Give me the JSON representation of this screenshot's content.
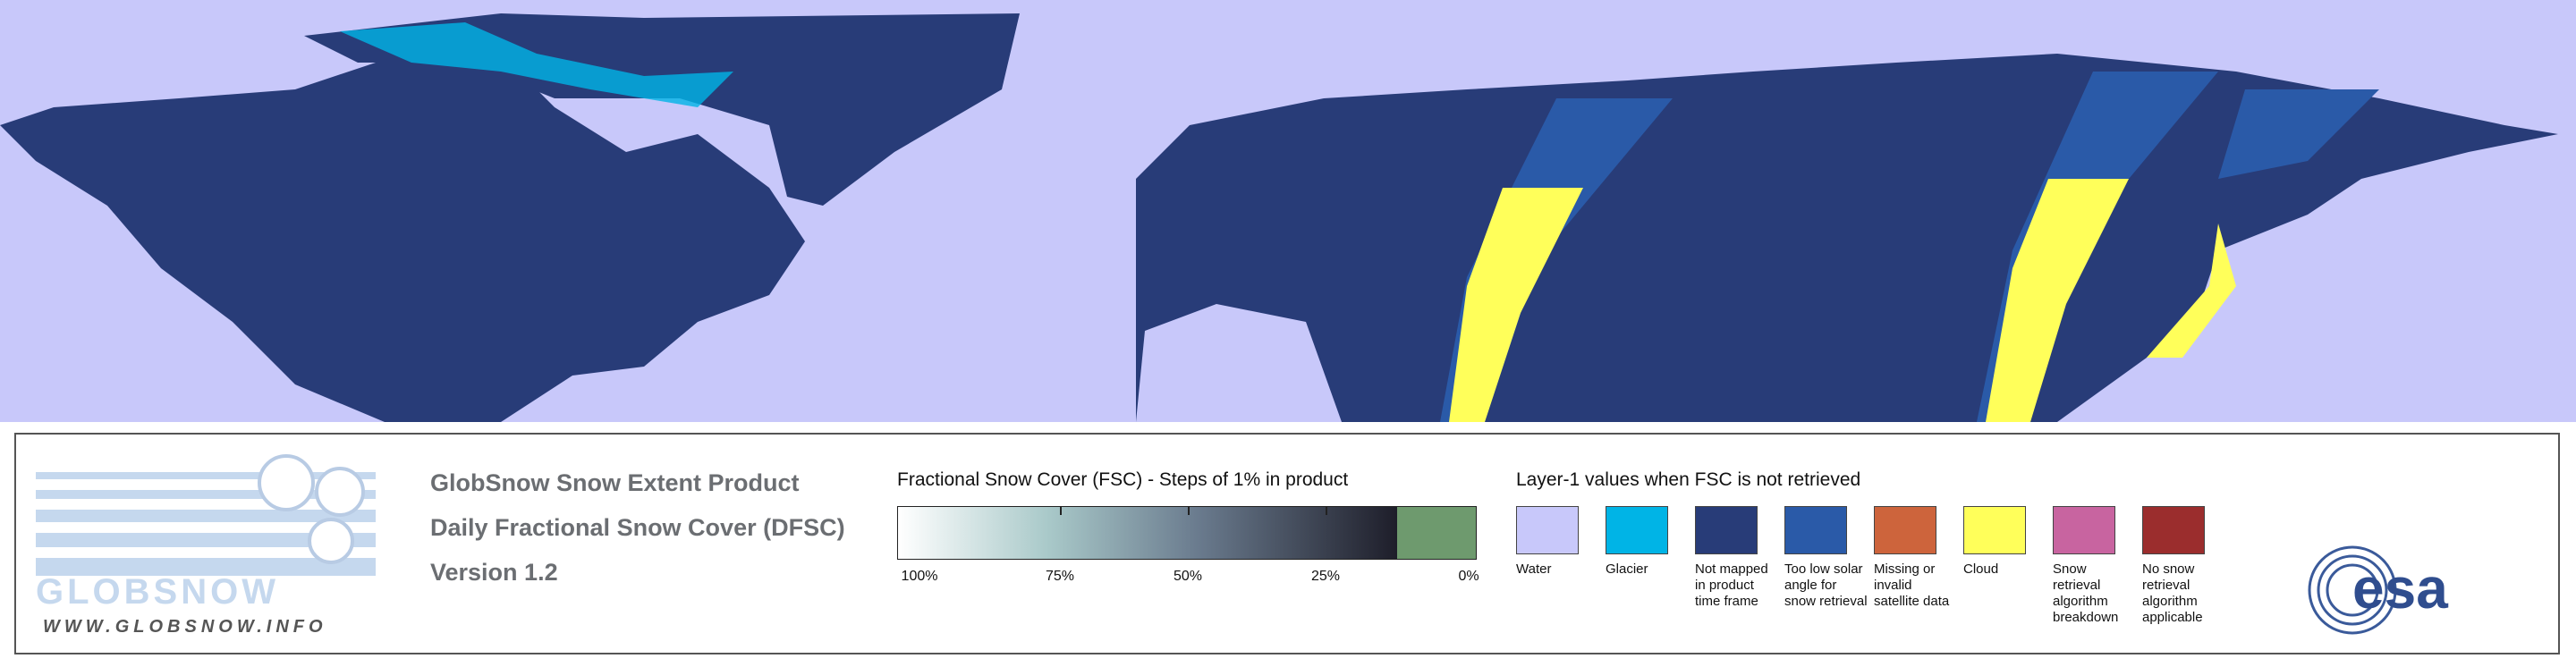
{
  "logo": {
    "name": "GLOBSNOW",
    "url": "WWW.GLOBSNOW.INFO"
  },
  "product": {
    "lines": [
      "GlobSnow Snow Extent Product",
      "Daily Fractional Snow Cover (DFSC)",
      "Version 1.2"
    ]
  },
  "fsc_scale": {
    "title": "Fractional Snow Cover (FSC) - Steps of 1% in product",
    "labels": [
      "100%",
      "75%",
      "50%",
      "25%",
      "0%"
    ]
  },
  "layer1": {
    "title": "Layer-1 values when FSC is not retrieved",
    "items": [
      {
        "label": "Water",
        "color": "#c8c8fa"
      },
      {
        "label": "Glacier",
        "color": "#00b4e6"
      },
      {
        "label": "Not mapped in product time frame",
        "color": "#283c78"
      },
      {
        "label": "Too low solar angle for snow retrieval",
        "color": "#2a5aa8"
      },
      {
        "label": "Missing or invalid satellite data",
        "color": "#cd643c"
      },
      {
        "label": "Cloud",
        "color": "#ffff5a"
      },
      {
        "label": "Snow retrieval algorithm breakdown",
        "color": "#c864a0"
      },
      {
        "label": "No snow retrieval algorithm applicable",
        "color": "#9b2d2d"
      }
    ]
  },
  "agency": {
    "name": "esa"
  }
}
